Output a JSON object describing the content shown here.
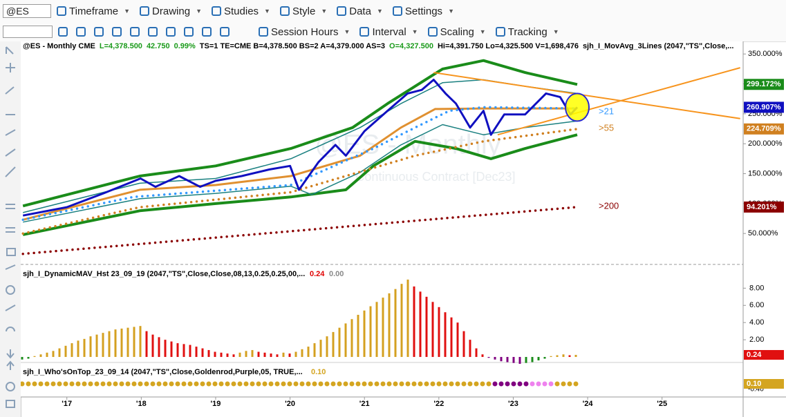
{
  "toolbar": {
    "symbol": "@ES",
    "items": [
      "Timeframe",
      "Drawing",
      "Studies",
      "Style",
      "Data",
      "Settings"
    ]
  },
  "toolbar2": {
    "items": [
      "Session Hours",
      "Interval",
      "Scaling",
      "Tracking"
    ]
  },
  "watermark": [
    "@ES - Monthly",
    "Continuous Contract [Dec23]"
  ],
  "price_pane": {
    "header": [
      {
        "text": "@ES - Monthly  CME",
        "color": "#000000"
      },
      {
        "text": "L=4,378.500",
        "color": "#1a9a1a"
      },
      {
        "text": "42.750",
        "color": "#1a9a1a"
      },
      {
        "text": "0.99%",
        "color": "#1a9a1a"
      },
      {
        "text": "TS=1  TE=CME  B=4,378.500  BS=2  A=4,379.000  AS=3",
        "color": "#000000"
      },
      {
        "text": "O=4,327.500",
        "color": "#1a9a1a"
      },
      {
        "text": "Hi=4,391.750  Lo=4,325.500  V=1,698,476",
        "color": "#000000"
      },
      {
        "text": "sjh_I_MovAvg_3Lines (2047,\"TS\",Close,...",
        "color": "#000000"
      }
    ],
    "ylim": [
      -4,
      371
    ],
    "yticks": [
      {
        "value": 50,
        "label": "50.000%"
      },
      {
        "value": 100,
        "label": "100.000%"
      },
      {
        "value": 150,
        "label": "150.000%"
      },
      {
        "value": 200,
        "label": "200.000%"
      },
      {
        "value": 250,
        "label": "250.000%"
      },
      {
        "value": 300,
        "label": "300.000%"
      },
      {
        "value": 350,
        "label": "350.000%"
      }
    ],
    "series": [
      {
        "name": "Upper Band",
        "color": "#1a8c1a",
        "width": 4,
        "x": [
          2016.41,
          2017.98,
          2019.0,
          2020.01,
          2020.84,
          2021.31,
          2022.05,
          2022.6,
          2023.16,
          2023.86
        ],
        "values": [
          96,
          146,
          163,
          192,
          227,
          267,
          325,
          339,
          319,
          299.172
        ],
        "value_label": "299.172%"
      },
      {
        "name": "Lower Band",
        "color": "#1a8c1a",
        "width": 4,
        "x": [
          2016.41,
          2017.98,
          2019.0,
          2020.01,
          2020.75,
          2021.12,
          2021.68,
          2022.23,
          2022.7,
          2023.16,
          2023.86
        ],
        "values": [
          48,
          88,
          100,
          111,
          123,
          163,
          204,
          192,
          175,
          192,
          215
        ]
      },
      {
        "name": "Upper Channel",
        "color": "#1a8080",
        "width": 1.5,
        "x": [
          2016.41,
          2017.98,
          2019.0,
          2020.01,
          2020.94,
          2021.49,
          2022.05,
          2022.6,
          2023.16,
          2023.86
        ],
        "values": [
          85,
          134,
          142,
          175,
          227,
          267,
          302,
          307,
          296,
          284
        ]
      },
      {
        "name": "Lower Channel",
        "color": "#1a8080",
        "width": 1.5,
        "x": [
          2016.41,
          2017.98,
          2019.0,
          2020.01,
          2020.29,
          2020.94,
          2021.49,
          2022.05,
          2022.6,
          2023.16,
          2023.86
        ],
        "values": [
          69,
          108,
          117,
          129,
          115,
          152,
          198,
          232,
          215,
          227,
          238
        ]
      },
      {
        "name": "Slow MA",
        "color": "#e09030",
        "width": 3,
        "x": [
          2016.41,
          2017.98,
          2019.0,
          2020.01,
          2020.94,
          2021.49,
          2021.95,
          2022.6,
          2023.86
        ],
        "values": [
          73,
          123,
          131,
          146,
          180,
          227,
          258,
          259,
          259
        ]
      },
      {
        "name": ">55",
        "color": "#d08020",
        "width": 3.5,
        "dotted": true,
        "x": [
          2016.41,
          2017.98,
          2020.01,
          2021.68,
          2022.6,
          2023.86
        ],
        "values": [
          50,
          94,
          119,
          180,
          204,
          224.709
        ],
        "value_label": "224.709%"
      },
      {
        "name": ">200",
        "color": "#8b0000",
        "width": 3.5,
        "dotted": true,
        "x": [
          2016.41,
          2023.86
        ],
        "values": [
          16,
          94.201
        ],
        "value_label": "94.201%"
      },
      {
        "name": ">21",
        "color": "#3399ff",
        "width": 3.5,
        "dotted": true,
        "x": [
          2016.41,
          2017.89,
          2020.01,
          2021.12,
          2021.68,
          2022.14,
          2022.6,
          2023.86
        ],
        "values": [
          73,
          111,
          131,
          192,
          227,
          255,
          261,
          259
        ]
      },
      {
        "name": "Trend Down",
        "color": "#f7941d",
        "width": 2,
        "x": [
          2021.93,
          2026.05
        ],
        "values": [
          319,
          242
        ]
      },
      {
        "name": "Trend Up",
        "color": "#f7941d",
        "width": 2,
        "x": [
          2022.79,
          2026.05
        ],
        "values": [
          215,
          327
        ]
      },
      {
        "name": "Price",
        "color": "#1010c0",
        "width": 3,
        "x": [
          2016.41,
          2017.0,
          2017.49,
          2017.99,
          2018.19,
          2018.51,
          2018.79,
          2019.0,
          2019.35,
          2019.72,
          2020.0,
          2020.12,
          2020.38,
          2020.61,
          2020.75,
          2021.0,
          2021.31,
          2021.58,
          2021.77,
          2021.93,
          2022.09,
          2022.23,
          2022.42,
          2022.6,
          2022.7,
          2022.88,
          2023.16,
          2023.44,
          2023.63,
          2023.77,
          2023.86
        ],
        "values": [
          80,
          94,
          117,
          142,
          128,
          146,
          128,
          138,
          146,
          157,
          163,
          123,
          169,
          198,
          180,
          221,
          255,
          284,
          290,
          307,
          284,
          267,
          227,
          255,
          215,
          249,
          249,
          284,
          278,
          249,
          260.907
        ],
        "value_label": "260.907%"
      }
    ],
    "annotations": [
      {
        "text": ">21",
        "color": "#3399ff"
      },
      {
        "text": ">55",
        "color": "#d08020"
      },
      {
        "text": ">200",
        "color": "#8b0000"
      }
    ]
  },
  "xaxis": {
    "xlim": [
      2016.38,
      2026.09
    ],
    "xticks": [
      {
        "value": 2017,
        "label": "'17"
      },
      {
        "value": 2018,
        "label": "'18"
      },
      {
        "value": 2019,
        "label": "'19"
      },
      {
        "value": 2020,
        "label": "'20"
      },
      {
        "value": 2021,
        "label": "'21"
      },
      {
        "value": 2022,
        "label": "'22"
      },
      {
        "value": 2023,
        "label": "'23"
      },
      {
        "value": 2024,
        "label": "'24"
      },
      {
        "value": 2025,
        "label": "'25"
      }
    ]
  },
  "histogram_pane": {
    "header": "sjh_I_DynamicMAV_Hst 23_09_19 (2047,\"TS\",Close,Close,08,13,0.25,0.25,00,...",
    "header_values": [
      {
        "text": "0.24",
        "color": "#e00000"
      },
      {
        "text": "0.00",
        "color": "#888888"
      }
    ],
    "ylim": [
      -0.4,
      10.2
    ],
    "yticks": [
      {
        "value": 2,
        "label": "2.00"
      },
      {
        "value": 4,
        "label": "4.00"
      },
      {
        "value": 6,
        "label": "6.00"
      },
      {
        "value": 8,
        "label": "8.00"
      }
    ],
    "colors": {
      "up": "#d4a020",
      "down": "#e01010",
      "neg_up": "#1a8c1a",
      "neg_down": "#800080"
    },
    "values": [
      -0.3,
      -0.2,
      0.1,
      0.3,
      0.5,
      0.7,
      1.0,
      1.3,
      1.6,
      1.9,
      2.1,
      2.4,
      2.6,
      2.8,
      3.0,
      3.2,
      3.3,
      3.4,
      3.5,
      3.6,
      3.0,
      2.6,
      2.3,
      2.0,
      1.8,
      1.6,
      1.5,
      1.4,
      1.2,
      1.0,
      0.8,
      0.6,
      0.5,
      0.4,
      0.3,
      0.5,
      0.7,
      0.8,
      0.6,
      0.5,
      0.4,
      0.3,
      0.5,
      0.4,
      0.6,
      0.9,
      1.2,
      1.6,
      2.0,
      2.4,
      2.9,
      3.4,
      3.9,
      4.4,
      4.9,
      5.4,
      5.9,
      6.4,
      6.9,
      7.4,
      7.9,
      8.5,
      9.0,
      8.2,
      7.6,
      7.0,
      6.4,
      5.8,
      5.2,
      4.6,
      4.0,
      3.0,
      2.0,
      1.0,
      0.3,
      -0.1,
      -0.3,
      -0.5,
      -0.6,
      -0.7,
      -0.8,
      -0.7,
      -0.6,
      -0.4,
      -0.2,
      0.1,
      0.2,
      0.3,
      0.2,
      0.24
    ],
    "value_label": "0.24"
  },
  "who_pane": {
    "header": "sjh_I_Who'sOnTop_23_09_14 (2047,\"TS\",Close,Goldenrod,Purple,05,  TRUE,...",
    "header_value": "0.10",
    "segments": [
      {
        "color": "#d4a520",
        "count": 76
      },
      {
        "color": "#800080",
        "count": 6
      },
      {
        "color": "#ee82ee",
        "count": 4
      },
      {
        "color": "#d4a520",
        "count": 4
      }
    ],
    "axis_labels": [
      "0.10",
      "-0.40"
    ]
  }
}
